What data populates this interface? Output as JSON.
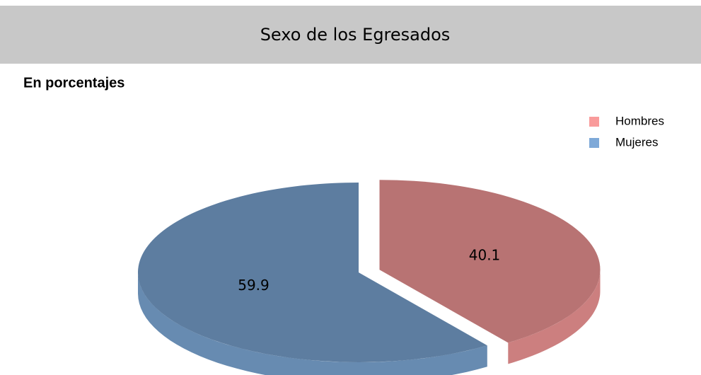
{
  "chart_data": {
    "type": "pie",
    "title": "Sexo de los Egresados",
    "subtitle": "En porcentajes",
    "categories": [
      "Hombres",
      "Mujeres"
    ],
    "values": [
      40.1,
      59.9
    ],
    "colors": [
      "#f99b9b",
      "#7ea9d8"
    ],
    "legend": "top-right"
  }
}
